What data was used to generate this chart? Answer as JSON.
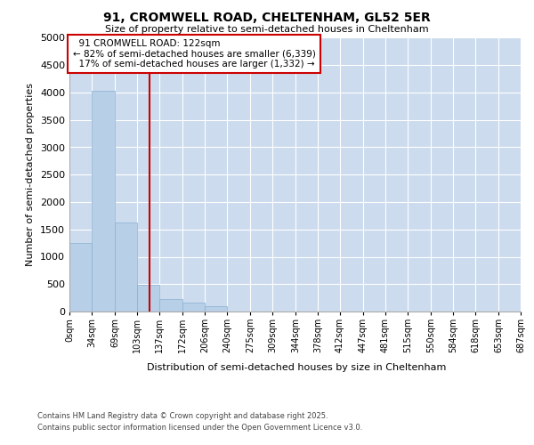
{
  "title": "91, CROMWELL ROAD, CHELTENHAM, GL52 5ER",
  "subtitle": "Size of property relative to semi-detached houses in Cheltenham",
  "xlabel": "Distribution of semi-detached houses by size in Cheltenham",
  "ylabel": "Number of semi-detached properties",
  "background_color": "#ccdcee",
  "bar_color": "#b8cfe8",
  "bar_edge_color": "#8ab0d0",
  "property_size": 122,
  "property_label": "91 CROMWELL ROAD: 122sqm",
  "pct_smaller": 82,
  "pct_larger": 17,
  "n_smaller": 6339,
  "n_larger": 1332,
  "annotation_box_color": "#cc0000",
  "vline_color": "#cc0000",
  "bin_edges": [
    0,
    34,
    69,
    103,
    137,
    172,
    206,
    240,
    275,
    309,
    344,
    378,
    412,
    447,
    481,
    515,
    550,
    584,
    618,
    653,
    687
  ],
  "bin_labels": [
    "0sqm",
    "34sqm",
    "69sqm",
    "103sqm",
    "137sqm",
    "172sqm",
    "206sqm",
    "240sqm",
    "275sqm",
    "309sqm",
    "344sqm",
    "378sqm",
    "412sqm",
    "447sqm",
    "481sqm",
    "515sqm",
    "550sqm",
    "584sqm",
    "618sqm",
    "653sqm",
    "687sqm"
  ],
  "bar_heights": [
    1250,
    4025,
    1625,
    490,
    220,
    165,
    100,
    0,
    0,
    0,
    0,
    0,
    0,
    0,
    0,
    0,
    0,
    0,
    0,
    0
  ],
  "ylim": [
    0,
    5000
  ],
  "yticks": [
    0,
    500,
    1000,
    1500,
    2000,
    2500,
    3000,
    3500,
    4000,
    4500,
    5000
  ],
  "footer_line1": "Contains HM Land Registry data © Crown copyright and database right 2025.",
  "footer_line2": "Contains public sector information licensed under the Open Government Licence v3.0."
}
